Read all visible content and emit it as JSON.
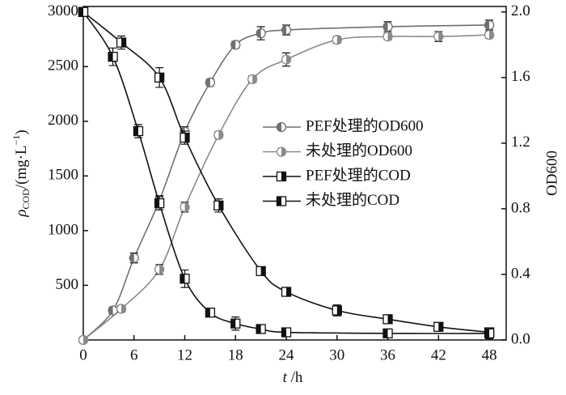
{
  "chart_data": {
    "type": "line",
    "xlabel": {
      "symbol": "t",
      "unit": " /h"
    },
    "ylabel": {
      "symbol": "ρ",
      "sub": "COD",
      "unit": "/(mg·L",
      "sup": "−1",
      "close": ")"
    },
    "y2label": "OD600",
    "xlim": [
      0,
      50
    ],
    "xticks": [
      0,
      6,
      12,
      18,
      24,
      30,
      36,
      42,
      48
    ],
    "ylim": [
      0,
      3050
    ],
    "yticks": [
      500,
      1000,
      1500,
      2000,
      2500,
      3000
    ],
    "y2lim": [
      0,
      2.0333
    ],
    "y2ticks": [
      {
        "value": 0,
        "label": "0.0"
      },
      {
        "value": 0.4,
        "label": "0.4"
      },
      {
        "value": 0.8,
        "label": "0.8"
      },
      {
        "value": 1.2,
        "label": "1.2"
      },
      {
        "value": 1.6,
        "label": "1.6"
      },
      {
        "value": 2.0,
        "label": "2.0"
      }
    ],
    "series": [
      {
        "name": "PEF处理的OD600",
        "color": "#707070",
        "axis": "y2",
        "shape": "circle",
        "half": "left",
        "x": [
          0,
          3.5,
          6,
          9,
          12,
          15,
          18,
          21,
          24,
          36,
          48
        ],
        "values": [
          0,
          0.18,
          0.5,
          0.85,
          1.27,
          1.57,
          1.8,
          1.87,
          1.89,
          1.91,
          1.92
        ],
        "errors": [
          0.01,
          0.02,
          0.03,
          0.03,
          0.03,
          0.02,
          0.02,
          0.04,
          0.03,
          0.03,
          0.03
        ]
      },
      {
        "name": "未处理的OD600",
        "color": "#8a8a8a",
        "axis": "y2",
        "shape": "circle",
        "half": "right",
        "x": [
          0,
          4.5,
          9,
          12,
          16,
          20,
          24,
          30,
          36,
          42,
          48
        ],
        "values": [
          0,
          0.19,
          0.43,
          0.81,
          1.25,
          1.59,
          1.71,
          1.83,
          1.85,
          1.85,
          1.86
        ],
        "errors": [
          0.01,
          0.02,
          0.03,
          0.03,
          0.02,
          0.02,
          0.04,
          0.02,
          0.02,
          0.03,
          0.02
        ]
      },
      {
        "name": "PEF处理的COD",
        "color": "#111111",
        "shape": "square",
        "half": "right",
        "x": [
          0,
          4.5,
          9,
          12,
          16,
          21,
          24,
          30,
          36,
          42,
          48
        ],
        "values": [
          3000,
          2720,
          2400,
          1850,
          1230,
          630,
          440,
          270,
          190,
          120,
          70
        ],
        "errors": [
          20,
          60,
          90,
          60,
          60,
          25,
          20,
          50,
          30,
          25,
          30
        ]
      },
      {
        "name": "未处理的COD",
        "color": "#111111",
        "shape": "square",
        "half": "left",
        "x": [
          0,
          3.5,
          6.5,
          9,
          12,
          15,
          18,
          21,
          24,
          36,
          48
        ],
        "values": [
          3000,
          2590,
          1910,
          1250,
          560,
          250,
          150,
          100,
          70,
          60,
          60
        ],
        "errors": [
          20,
          80,
          60,
          60,
          80,
          25,
          60,
          25,
          20,
          40,
          50
        ]
      }
    ]
  }
}
